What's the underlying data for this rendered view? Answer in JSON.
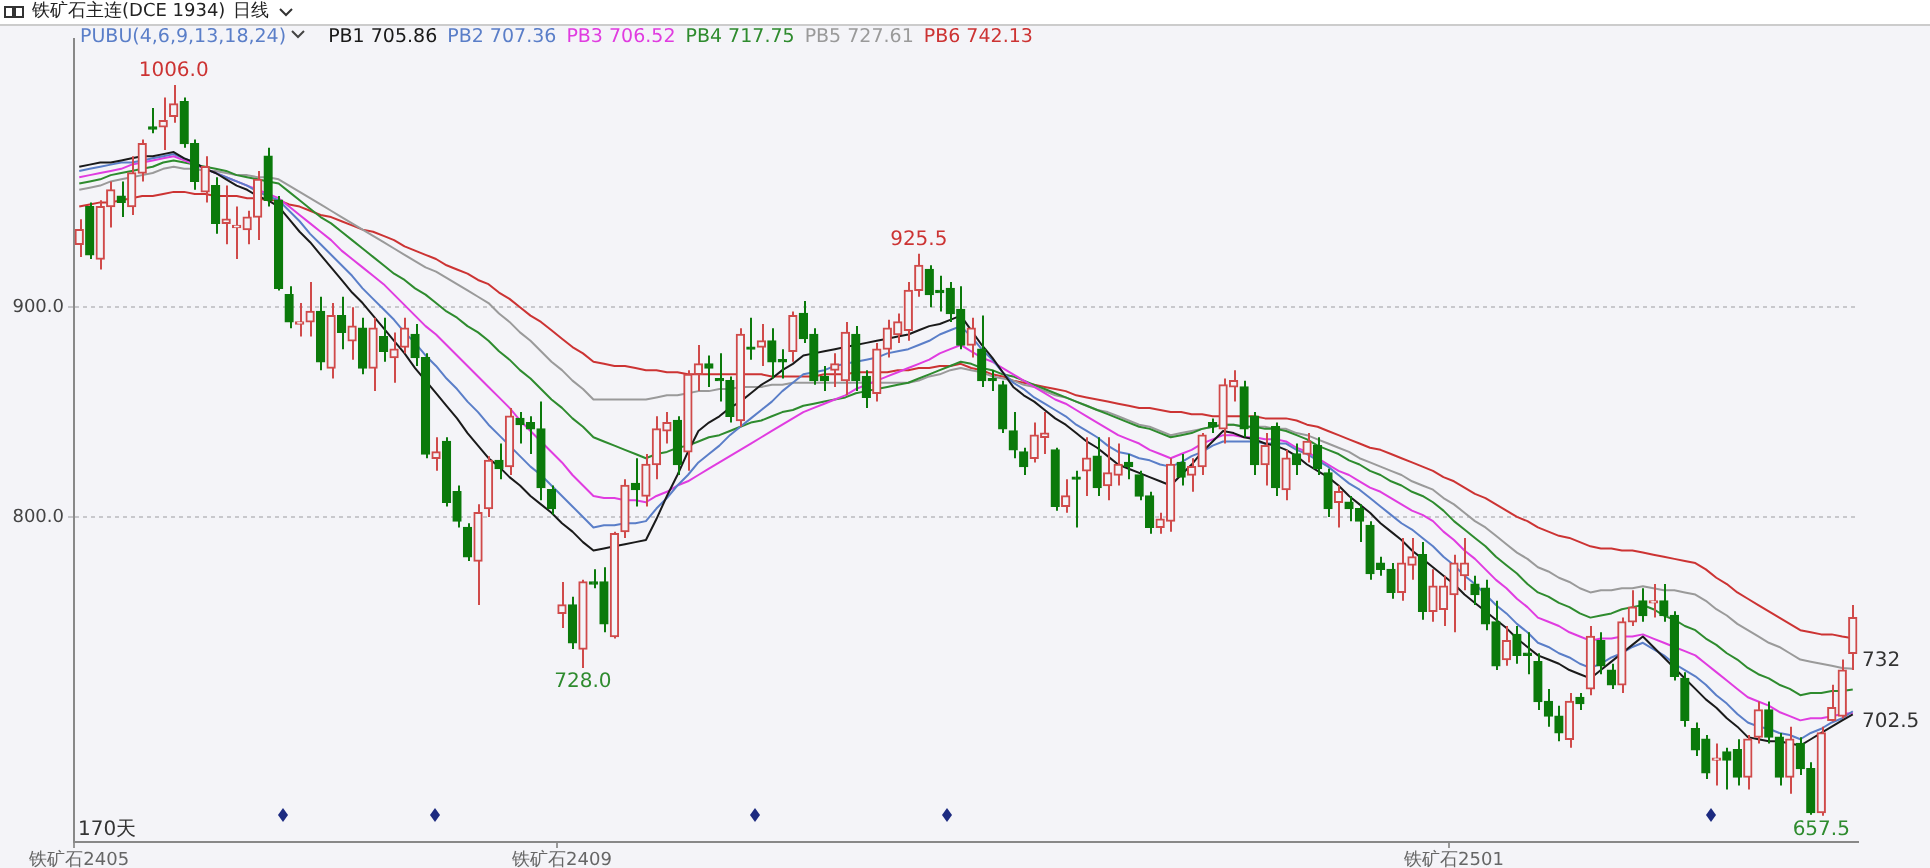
{
  "chart_data": {
    "type": "candlestick",
    "title": "铁矿石主连(DCE 1934)",
    "subtitle": "日线",
    "legend_title": "PUBU(4,6,9,13,18,24)",
    "legend": "top left",
    "grid": "y",
    "categories": [
      "铁矿石2405",
      null,
      null,
      null,
      null,
      null,
      null,
      null,
      null,
      null,
      null,
      null,
      null,
      null,
      null,
      null,
      null,
      null,
      null,
      null,
      null,
      null,
      null,
      null,
      null,
      null,
      null,
      null,
      null,
      null,
      null,
      null,
      null,
      null,
      null,
      null,
      null,
      null,
      null,
      null,
      null,
      null,
      null,
      null,
      null,
      null,
      "铁矿石2409",
      null,
      null,
      null,
      null,
      null,
      null,
      null,
      null,
      null,
      null,
      null,
      null,
      null,
      null,
      null,
      null,
      null,
      null,
      null,
      null,
      null,
      null,
      null,
      null,
      null,
      null,
      null,
      null,
      null,
      null,
      null,
      null,
      null,
      null,
      null,
      null,
      null,
      null,
      null,
      null,
      null,
      null,
      null,
      null,
      null,
      null,
      null,
      null,
      null,
      null,
      null,
      null,
      null,
      null,
      null,
      null,
      null,
      null,
      null,
      null,
      null,
      null,
      null,
      null,
      null,
      null,
      null,
      null,
      null,
      null,
      null,
      null,
      null,
      null,
      null,
      null,
      null,
      null,
      null,
      null,
      null,
      null,
      null,
      null,
      "铁矿石2501",
      null,
      null,
      null,
      null,
      null,
      null,
      null,
      null,
      null,
      null,
      null,
      null,
      null,
      null,
      null,
      null,
      null,
      null,
      null,
      null,
      null,
      null,
      null,
      null,
      null,
      null,
      null,
      null,
      null,
      null,
      null,
      null,
      null,
      null,
      null,
      null,
      null,
      null
    ],
    "ylim": [
      645,
      1028
    ],
    "yticks": [
      {
        "value": 900,
        "label": "900.0"
      },
      {
        "value": 800,
        "label": "800.0"
      }
    ],
    "ohlc": [
      [
        930,
        942,
        924,
        937
      ],
      [
        948,
        950,
        923,
        925
      ],
      [
        923,
        951,
        918,
        948
      ],
      [
        948,
        960,
        938,
        956
      ],
      [
        953,
        960,
        943,
        950
      ],
      [
        948,
        972,
        944,
        964
      ],
      [
        964,
        980,
        960,
        978
      ],
      [
        986,
        995,
        983,
        985
      ],
      [
        986,
        1000,
        975,
        989
      ],
      [
        991,
        1006,
        988,
        997
      ],
      [
        998,
        1000,
        976,
        978
      ],
      [
        978,
        980,
        956,
        960
      ],
      [
        955,
        972,
        950,
        967
      ],
      [
        958,
        962,
        935,
        940
      ],
      [
        940,
        958,
        930,
        942
      ],
      [
        938,
        948,
        923,
        939
      ],
      [
        937,
        946,
        930,
        943
      ],
      [
        943,
        965,
        932,
        961
      ],
      [
        972,
        976,
        948,
        951
      ],
      [
        951,
        953,
        908,
        909
      ],
      [
        906,
        910,
        890,
        893
      ],
      [
        892,
        902,
        886,
        893
      ],
      [
        893,
        912,
        886,
        898
      ],
      [
        898,
        905,
        870,
        874
      ],
      [
        871,
        902,
        866,
        896
      ],
      [
        896,
        905,
        880,
        888
      ],
      [
        884,
        900,
        875,
        891
      ],
      [
        890,
        895,
        868,
        871
      ],
      [
        871,
        895,
        860,
        890
      ],
      [
        886,
        895,
        874,
        879
      ],
      [
        876,
        888,
        864,
        880
      ],
      [
        881,
        895,
        878,
        890
      ],
      [
        887,
        892,
        872,
        876
      ],
      [
        876,
        878,
        828,
        830
      ],
      [
        828,
        838,
        822,
        831
      ],
      [
        836,
        838,
        805,
        807
      ],
      [
        812,
        815,
        795,
        798
      ],
      [
        795,
        797,
        779,
        781
      ],
      [
        779,
        806,
        758,
        802
      ],
      [
        804,
        829,
        800,
        827
      ],
      [
        827,
        835,
        818,
        823
      ],
      [
        824,
        852,
        820,
        848
      ],
      [
        847,
        850,
        835,
        844
      ],
      [
        845,
        848,
        830,
        842
      ],
      [
        842,
        855,
        808,
        814
      ],
      [
        813,
        815,
        801,
        804
      ],
      [
        754,
        769,
        747,
        758
      ],
      [
        758,
        762,
        737,
        740
      ],
      [
        737,
        770,
        728,
        769
      ],
      [
        769,
        775,
        766,
        768
      ],
      [
        769,
        776,
        745,
        749
      ],
      [
        743,
        793,
        742,
        792
      ],
      [
        793,
        818,
        790,
        815
      ],
      [
        816,
        828,
        805,
        813
      ],
      [
        810,
        830,
        805,
        825
      ],
      [
        825,
        848,
        818,
        842
      ],
      [
        841,
        850,
        835,
        845
      ],
      [
        846,
        848,
        820,
        825
      ],
      [
        831,
        870,
        822,
        868
      ],
      [
        868,
        882,
        860,
        873
      ],
      [
        873,
        877,
        862,
        871
      ],
      [
        866,
        878,
        855,
        865
      ],
      [
        865,
        867,
        845,
        848
      ],
      [
        846,
        890,
        843,
        887
      ],
      [
        881,
        895,
        875,
        880
      ],
      [
        881,
        892,
        872,
        884
      ],
      [
        884,
        890,
        866,
        874
      ],
      [
        875,
        880,
        866,
        874
      ],
      [
        879,
        898,
        874,
        896
      ],
      [
        897,
        903,
        883,
        885
      ],
      [
        887,
        890,
        863,
        865
      ],
      [
        867,
        872,
        860,
        865
      ],
      [
        870,
        878,
        862,
        873
      ],
      [
        865,
        893,
        858,
        888
      ],
      [
        887,
        891,
        860,
        865
      ],
      [
        867,
        870,
        852,
        857
      ],
      [
        859,
        883,
        855,
        880
      ],
      [
        880,
        894,
        876,
        890
      ],
      [
        887,
        897,
        883,
        893
      ],
      [
        889,
        912,
        884,
        908
      ],
      [
        908,
        925.5,
        905,
        920
      ],
      [
        918,
        920,
        900,
        906
      ],
      [
        908,
        915,
        898,
        907
      ],
      [
        909,
        912,
        893,
        897
      ],
      [
        899,
        910,
        880,
        882
      ],
      [
        882,
        895,
        876,
        890
      ],
      [
        880,
        896,
        862,
        865
      ],
      [
        866,
        870,
        860,
        865
      ],
      [
        863,
        865,
        840,
        842
      ],
      [
        841,
        850,
        828,
        832
      ],
      [
        831,
        833,
        820,
        824
      ],
      [
        828,
        845,
        826,
        839
      ],
      [
        838,
        850,
        830,
        840
      ],
      [
        832,
        833,
        803,
        805
      ],
      [
        805,
        818,
        802,
        810
      ],
      [
        819,
        822,
        795,
        818
      ],
      [
        822,
        838,
        810,
        828
      ],
      [
        829,
        838,
        810,
        814
      ],
      [
        815,
        838,
        808,
        821
      ],
      [
        820,
        835,
        815,
        825
      ],
      [
        826,
        830,
        818,
        824
      ],
      [
        820,
        822,
        808,
        810
      ],
      [
        810,
        812,
        792,
        795
      ],
      [
        795,
        802,
        792,
        799
      ],
      [
        798,
        828,
        793,
        825
      ],
      [
        826,
        830,
        815,
        819
      ],
      [
        820,
        828,
        812,
        824
      ],
      [
        824,
        840,
        820,
        839
      ],
      [
        845,
        847,
        840,
        843
      ],
      [
        842,
        866,
        835,
        863
      ],
      [
        862,
        870,
        855,
        865
      ],
      [
        862,
        865,
        838,
        842
      ],
      [
        848,
        850,
        820,
        825
      ],
      [
        825,
        840,
        815,
        834
      ],
      [
        843,
        845,
        810,
        814
      ],
      [
        813,
        832,
        808,
        828
      ],
      [
        830,
        835,
        820,
        825
      ],
      [
        830,
        840,
        826,
        836
      ],
      [
        834,
        838,
        820,
        823
      ],
      [
        821,
        823,
        800,
        804
      ],
      [
        807,
        815,
        795,
        812
      ],
      [
        807,
        810,
        798,
        804
      ],
      [
        804,
        806,
        788,
        798
      ],
      [
        796,
        798,
        770,
        773
      ],
      [
        778,
        781,
        772,
        775
      ],
      [
        775,
        778,
        761,
        764
      ],
      [
        764,
        790,
        760,
        778
      ],
      [
        777,
        790,
        770,
        781
      ],
      [
        782,
        788,
        751,
        755
      ],
      [
        755,
        775,
        750,
        767
      ],
      [
        756,
        772,
        748,
        767
      ],
      [
        763,
        782,
        745,
        778
      ],
      [
        772,
        790,
        765,
        778
      ],
      [
        768,
        772,
        758,
        763
      ],
      [
        766,
        770,
        746,
        749
      ],
      [
        750,
        760,
        727,
        729
      ],
      [
        732,
        748,
        729,
        741
      ],
      [
        744,
        748,
        730,
        734
      ],
      [
        735,
        745,
        725,
        734
      ],
      [
        731,
        735,
        708,
        712
      ],
      [
        712,
        718,
        700,
        705
      ],
      [
        705,
        710,
        693,
        697
      ],
      [
        694,
        716,
        690,
        712
      ],
      [
        714,
        716,
        708,
        711
      ],
      [
        718,
        748,
        715,
        743
      ],
      [
        741,
        745,
        725,
        729
      ],
      [
        727,
        730,
        718,
        720
      ],
      [
        720,
        752,
        716,
        750
      ],
      [
        750,
        765,
        748,
        757
      ],
      [
        760,
        766,
        750,
        753
      ],
      [
        759,
        768,
        752,
        760
      ],
      [
        760,
        768,
        750,
        753
      ],
      [
        753,
        755,
        722,
        724
      ],
      [
        723,
        726,
        700,
        703
      ],
      [
        699,
        702,
        686,
        689
      ],
      [
        694,
        696,
        675,
        678
      ],
      [
        684,
        692,
        672,
        685
      ],
      [
        688,
        690,
        670,
        684
      ],
      [
        689,
        694,
        672,
        676
      ],
      [
        676,
        696,
        670,
        694
      ],
      [
        695,
        712,
        692,
        708
      ],
      [
        708,
        712,
        692,
        695
      ],
      [
        695,
        697,
        672,
        676
      ],
      [
        676,
        700,
        668,
        694
      ],
      [
        692,
        695,
        677,
        680
      ],
      [
        680,
        683,
        658,
        659
      ],
      [
        659,
        700,
        657.5,
        697
      ],
      [
        703,
        720,
        702.5,
        709
      ],
      [
        705,
        732,
        704,
        727
      ],
      [
        735,
        758,
        727,
        752
      ]
    ],
    "colors": [
      "#d04a4a",
      "#0b7a0b",
      "#d04a4a",
      "#d04a4a",
      "#0b7a0b",
      "#d04a4a",
      "#d04a4a",
      "#0b7a0b",
      "#d04a4a",
      "#d04a4a",
      "#0b7a0b",
      "#0b7a0b",
      "#d04a4a",
      "#0b7a0b",
      "#d04a4a",
      "#d04a4a",
      "#d04a4a",
      "#d04a4a",
      "#0b7a0b",
      "#0b7a0b",
      "#0b7a0b",
      "#d04a4a",
      "#d04a4a",
      "#0b7a0b",
      "#d04a4a",
      "#0b7a0b",
      "#d04a4a",
      "#0b7a0b",
      "#d04a4a",
      "#0b7a0b",
      "#d04a4a",
      "#d04a4a",
      "#0b7a0b",
      "#0b7a0b",
      "#d04a4a",
      "#0b7a0b",
      "#0b7a0b",
      "#0b7a0b",
      "#d04a4a",
      "#d04a4a",
      "#0b7a0b",
      "#d04a4a",
      "#0b7a0b",
      "#0b7a0b",
      "#0b7a0b",
      "#0b7a0b",
      "#d04a4a",
      "#0b7a0b",
      "#d04a4a",
      "#0b7a0b",
      "#0b7a0b",
      "#d04a4a",
      "#d04a4a",
      "#0b7a0b",
      "#d04a4a",
      "#d04a4a",
      "#d04a4a",
      "#0b7a0b",
      "#d04a4a",
      "#d04a4a",
      "#0b7a0b",
      "#0b7a0b",
      "#0b7a0b",
      "#d04a4a",
      "#0b7a0b",
      "#d04a4a",
      "#0b7a0b",
      "#0b7a0b",
      "#d04a4a",
      "#0b7a0b",
      "#0b7a0b",
      "#0b7a0b",
      "#d04a4a",
      "#d04a4a",
      "#0b7a0b",
      "#0b7a0b",
      "#d04a4a",
      "#d04a4a",
      "#d04a4a",
      "#d04a4a",
      "#d04a4a",
      "#0b7a0b",
      "#0b7a0b",
      "#0b7a0b",
      "#0b7a0b",
      "#d04a4a",
      "#0b7a0b",
      "#0b7a0b",
      "#0b7a0b",
      "#0b7a0b",
      "#0b7a0b",
      "#d04a4a",
      "#d04a4a",
      "#0b7a0b",
      "#d04a4a",
      "#0b7a0b",
      "#d04a4a",
      "#0b7a0b",
      "#d04a4a",
      "#d04a4a",
      "#0b7a0b",
      "#0b7a0b",
      "#0b7a0b",
      "#d04a4a",
      "#d04a4a",
      "#0b7a0b",
      "#d04a4a",
      "#d04a4a",
      "#0b7a0b",
      "#d04a4a",
      "#d04a4a",
      "#0b7a0b",
      "#0b7a0b",
      "#d04a4a",
      "#0b7a0b",
      "#d04a4a",
      "#0b7a0b",
      "#d04a4a",
      "#0b7a0b",
      "#0b7a0b",
      "#d04a4a",
      "#0b7a0b",
      "#0b7a0b",
      "#0b7a0b",
      "#0b7a0b",
      "#0b7a0b",
      "#d04a4a",
      "#d04a4a",
      "#0b7a0b",
      "#d04a4a",
      "#d04a4a",
      "#d04a4a",
      "#d04a4a",
      "#0b7a0b",
      "#0b7a0b",
      "#0b7a0b",
      "#d04a4a",
      "#0b7a0b",
      "#0b7a0b",
      "#0b7a0b",
      "#0b7a0b",
      "#0b7a0b",
      "#d04a4a",
      "#0b7a0b",
      "#d04a4a",
      "#0b7a0b",
      "#0b7a0b",
      "#d04a4a",
      "#d04a4a",
      "#0b7a0b",
      "#d04a4a",
      "#0b7a0b",
      "#0b7a0b",
      "#0b7a0b",
      "#0b7a0b",
      "#0b7a0b",
      "#d04a4a",
      "#0b7a0b",
      "#0b7a0b",
      "#d04a4a",
      "#d04a4a",
      "#0b7a0b",
      "#0b7a0b",
      "#d04a4a",
      "#0b7a0b",
      "#0b7a0b",
      "#d04a4a",
      "#d04a4a",
      "#d04a4a",
      "#d04a4a"
    ],
    "series": [
      {
        "name": "PB1 705.86",
        "type": "line",
        "color": "#1a1a1a",
        "values": [
          967,
          968,
          969,
          969,
          970,
          971,
          972,
          972,
          973,
          974,
          971,
          969,
          966,
          964,
          961,
          958,
          956,
          953,
          951,
          948,
          942,
          936,
          931,
          925,
          919,
          913,
          907,
          902,
          896,
          890,
          884,
          878,
          871,
          865,
          859,
          853,
          847,
          840,
          834,
          828,
          824,
          819,
          815,
          810,
          806,
          802,
          797,
          793,
          788,
          784,
          785,
          786,
          787,
          788,
          789,
          799,
          810,
          820,
          831,
          841,
          845,
          848,
          852,
          855,
          859,
          863,
          866,
          870,
          873,
          877,
          878,
          879,
          880,
          881,
          882,
          883,
          884,
          885,
          886,
          887,
          889,
          891,
          892,
          894,
          896,
          889,
          882,
          876,
          869,
          862,
          858,
          855,
          851,
          847,
          844,
          840,
          836,
          833,
          829,
          825,
          823,
          821,
          819,
          817,
          815,
          820,
          825,
          831,
          836,
          841,
          840,
          838,
          837,
          835,
          834,
          832,
          829,
          825,
          822,
          819,
          815,
          810,
          806,
          802,
          797,
          793,
          789,
          784,
          780,
          776,
          772,
          768,
          763,
          759,
          755,
          751,
          747,
          742,
          738,
          734,
          732,
          730,
          727,
          725,
          723,
          727,
          731,
          735,
          739,
          743,
          738,
          733,
          728,
          723,
          718,
          713,
          709,
          704,
          700,
          695,
          694,
          693,
          693,
          692,
          691,
          694,
          697,
          700,
          703,
          705.86
        ]
      },
      {
        "name": "PB2 707.36",
        "type": "line",
        "color": "#5a7ec8",
        "values": [
          965,
          966,
          967,
          968,
          969,
          969,
          970,
          971,
          972,
          973,
          971,
          969,
          966,
          964,
          962,
          960,
          958,
          955,
          953,
          951,
          946,
          941,
          935,
          930,
          925,
          920,
          915,
          909,
          904,
          899,
          894,
          888,
          883,
          877,
          872,
          866,
          861,
          855,
          850,
          844,
          839,
          834,
          829,
          824,
          820,
          815,
          810,
          805,
          800,
          795,
          796,
          796,
          797,
          797,
          798,
          804,
          809,
          815,
          820,
          826,
          830,
          834,
          839,
          843,
          847,
          851,
          855,
          860,
          864,
          868,
          869,
          870,
          872,
          873,
          874,
          875,
          876,
          878,
          879,
          880,
          882,
          884,
          887,
          889,
          891,
          886,
          880,
          875,
          869,
          864,
          861,
          857,
          854,
          851,
          848,
          844,
          841,
          838,
          834,
          831,
          830,
          828,
          827,
          825,
          824,
          826,
          829,
          831,
          834,
          836,
          836,
          836,
          836,
          835,
          835,
          835,
          832,
          830,
          827,
          824,
          820,
          816,
          813,
          809,
          805,
          801,
          797,
          794,
          790,
          786,
          781,
          777,
          772,
          768,
          763,
          758,
          754,
          749,
          745,
          740,
          738,
          735,
          733,
          730,
          728,
          730,
          733,
          735,
          738,
          740,
          737,
          734,
          730,
          727,
          724,
          720,
          715,
          711,
          706,
          702,
          700,
          699,
          697,
          696,
          694,
          697,
          699,
          702,
          704,
          707.36
        ]
      },
      {
        "name": "PB3 706.52",
        "type": "line",
        "color": "#e03ce0",
        "values": [
          962,
          963,
          964,
          965,
          966,
          968,
          969,
          970,
          971,
          972,
          970,
          968,
          966,
          964,
          962,
          960,
          958,
          956,
          954,
          952,
          948,
          944,
          940,
          936,
          932,
          927,
          923,
          919,
          915,
          911,
          906,
          901,
          896,
          891,
          887,
          882,
          877,
          872,
          867,
          862,
          857,
          852,
          846,
          841,
          836,
          831,
          826,
          820,
          815,
          810,
          809,
          809,
          808,
          808,
          807,
          810,
          812,
          815,
          817,
          820,
          823,
          826,
          829,
          832,
          835,
          838,
          841,
          844,
          847,
          850,
          852,
          854,
          856,
          858,
          861,
          863,
          865,
          867,
          869,
          871,
          873,
          875,
          878,
          880,
          882,
          879,
          876,
          874,
          871,
          868,
          865,
          862,
          859,
          856,
          854,
          851,
          848,
          845,
          842,
          839,
          837,
          835,
          832,
          830,
          828,
          830,
          832,
          835,
          837,
          839,
          839,
          838,
          838,
          837,
          837,
          836,
          833,
          831,
          828,
          825,
          822,
          820,
          817,
          814,
          812,
          809,
          806,
          803,
          801,
          798,
          793,
          789,
          784,
          780,
          775,
          770,
          766,
          761,
          757,
          752,
          750,
          748,
          745,
          743,
          741,
          742,
          742,
          743,
          743,
          744,
          742,
          740,
          738,
          736,
          734,
          730,
          726,
          722,
          718,
          714,
          712,
          710,
          707,
          705,
          703,
          704,
          704,
          705,
          706,
          706.52
        ]
      },
      {
        "name": "PB4 717.75",
        "type": "line",
        "color": "#2e8b2e",
        "values": [
          959,
          960,
          961,
          963,
          964,
          965,
          966,
          967,
          969,
          970,
          969,
          968,
          967,
          966,
          965,
          963,
          962,
          961,
          960,
          959,
          955,
          951,
          947,
          943,
          940,
          936,
          932,
          928,
          924,
          920,
          916,
          913,
          909,
          906,
          902,
          898,
          895,
          891,
          888,
          884,
          879,
          875,
          870,
          866,
          861,
          856,
          852,
          847,
          843,
          838,
          836,
          834,
          832,
          830,
          828,
          830,
          831,
          833,
          834,
          836,
          838,
          839,
          841,
          843,
          845,
          846,
          848,
          850,
          851,
          853,
          854,
          855,
          856,
          857,
          859,
          860,
          861,
          862,
          863,
          864,
          866,
          868,
          870,
          872,
          874,
          873,
          871,
          870,
          868,
          867,
          865,
          863,
          861,
          859,
          857,
          855,
          853,
          851,
          849,
          847,
          845,
          843,
          842,
          840,
          838,
          839,
          840,
          842,
          843,
          844,
          844,
          843,
          843,
          842,
          842,
          841,
          839,
          837,
          834,
          832,
          830,
          827,
          825,
          822,
          820,
          817,
          815,
          812,
          810,
          807,
          803,
          798,
          794,
          790,
          786,
          781,
          777,
          773,
          768,
          764,
          762,
          759,
          757,
          754,
          752,
          753,
          754,
          756,
          757,
          758,
          756,
          753,
          751,
          748,
          746,
          742,
          739,
          735,
          732,
          728,
          725,
          723,
          720,
          718,
          715,
          716,
          716,
          717,
          717,
          717.75
        ]
      },
      {
        "name": "PB5 727.61",
        "type": "line",
        "color": "#9a9a9a",
        "values": [
          956,
          957,
          958,
          960,
          961,
          962,
          963,
          964,
          966,
          967,
          966,
          966,
          965,
          965,
          964,
          963,
          963,
          962,
          962,
          961,
          958,
          955,
          952,
          949,
          946,
          943,
          940,
          937,
          934,
          931,
          928,
          925,
          922,
          919,
          917,
          914,
          911,
          908,
          905,
          902,
          897,
          893,
          888,
          884,
          879,
          874,
          870,
          865,
          861,
          856,
          856,
          856,
          856,
          856,
          856,
          857,
          858,
          858,
          859,
          860,
          860,
          861,
          861,
          862,
          862,
          862,
          863,
          863,
          864,
          864,
          864,
          864,
          864,
          864,
          864,
          864,
          864,
          864,
          864,
          864,
          865,
          867,
          868,
          870,
          871,
          870,
          869,
          867,
          866,
          865,
          863,
          862,
          860,
          858,
          857,
          855,
          853,
          851,
          850,
          848,
          846,
          844,
          843,
          841,
          839,
          840,
          841,
          842,
          843,
          844,
          844,
          843,
          843,
          843,
          842,
          842,
          840,
          839,
          837,
          835,
          833,
          831,
          828,
          826,
          824,
          822,
          820,
          817,
          815,
          813,
          809,
          806,
          802,
          798,
          795,
          791,
          787,
          783,
          780,
          776,
          774,
          771,
          769,
          766,
          764,
          765,
          765,
          766,
          766,
          767,
          766,
          765,
          765,
          764,
          763,
          760,
          756,
          753,
          749,
          746,
          743,
          740,
          738,
          735,
          732,
          731,
          730,
          729,
          728,
          727.61
        ]
      },
      {
        "name": "PB6 742.13",
        "type": "line",
        "color": "#cc3333",
        "values": [
          948,
          949,
          950,
          950,
          951,
          952,
          953,
          953,
          954,
          955,
          955,
          954,
          954,
          953,
          953,
          953,
          952,
          952,
          951,
          951,
          949,
          948,
          946,
          944,
          943,
          941,
          939,
          937,
          936,
          934,
          932,
          929,
          927,
          925,
          923,
          920,
          918,
          916,
          913,
          911,
          907,
          904,
          900,
          896,
          893,
          889,
          885,
          881,
          878,
          874,
          873,
          872,
          872,
          871,
          870,
          870,
          869,
          869,
          868,
          868,
          868,
          868,
          868,
          868,
          868,
          868,
          867,
          867,
          867,
          867,
          867,
          868,
          868,
          868,
          869,
          869,
          869,
          869,
          870,
          870,
          871,
          871,
          872,
          872,
          873,
          871,
          870,
          868,
          867,
          865,
          864,
          863,
          862,
          861,
          860,
          858,
          857,
          856,
          855,
          854,
          853,
          852,
          852,
          851,
          850,
          850,
          849,
          849,
          848,
          848,
          848,
          848,
          848,
          847,
          847,
          847,
          846,
          844,
          843,
          841,
          839,
          837,
          835,
          833,
          832,
          830,
          828,
          826,
          824,
          822,
          819,
          817,
          814,
          811,
          809,
          806,
          803,
          800,
          798,
          795,
          793,
          791,
          790,
          788,
          786,
          785,
          785,
          784,
          784,
          783,
          782,
          781,
          780,
          779,
          778,
          775,
          771,
          768,
          764,
          761,
          758,
          755,
          752,
          749,
          746,
          745,
          744,
          744,
          743,
          742.13
        ]
      }
    ],
    "annotations": [
      {
        "text": "1006.0",
        "y": 1006
      },
      {
        "text": "728.0",
        "y": 728
      },
      {
        "text": "925.5",
        "y": 925.5
      },
      {
        "text": "657.5",
        "y": 657.5
      },
      "732",
      "702.5",
      "170天"
    ]
  }
}
